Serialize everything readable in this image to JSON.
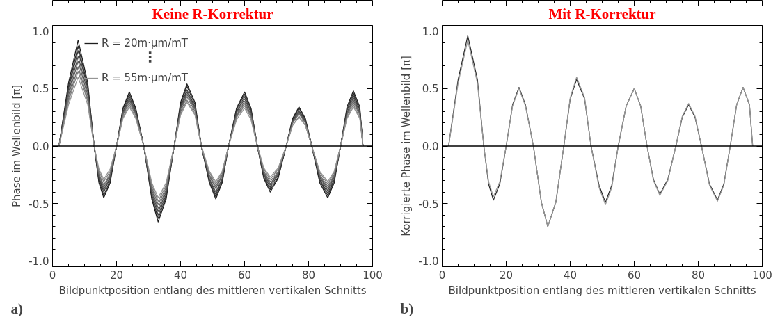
{
  "chart_data": [
    {
      "type": "line",
      "title": "Keine R-Korrektur",
      "xlabel": "Bildpunktposition entlang des mittleren vertikalen Schnitts",
      "ylabel": "Phase im Wellenbild [π]",
      "x": [
        2,
        5,
        8,
        11,
        13,
        14.5,
        16,
        18,
        20,
        22,
        24,
        26,
        28.5,
        31,
        33,
        35.5,
        38,
        40,
        42,
        44.5,
        46.5,
        49,
        51,
        53,
        55,
        57.5,
        60,
        62,
        64,
        66,
        68,
        70.5,
        73,
        75,
        77,
        79,
        81,
        83.5,
        86,
        88,
        90,
        92,
        94,
        96,
        97
      ],
      "xlim": [
        0,
        100
      ],
      "ylim": [
        -1.05,
        1.05
      ],
      "xticks": [
        0,
        20,
        40,
        60,
        80,
        100
      ],
      "yticks": [
        {
          "value": -1,
          "label": "-1.0"
        },
        {
          "value": -0.5,
          "label": "-0.5"
        },
        {
          "value": 0,
          "label": "0.0"
        },
        {
          "value": 0.5,
          "label": "0.5"
        },
        {
          "value": 1,
          "label": "1.0"
        }
      ],
      "grid": false,
      "legend": "top left",
      "line_style": "solid",
      "ref_lines": [
        {
          "axis": "y",
          "value": 0,
          "color": "#000000"
        }
      ],
      "annotations": [
        "⋮",
        "a)"
      ],
      "series": [
        {
          "name": "R = 20m·µm/mT",
          "color": "#1e1e1e",
          "values": [
            0,
            0.55,
            0.92,
            0.55,
            0,
            -0.32,
            -0.45,
            -0.32,
            0,
            0.33,
            0.47,
            0.33,
            0,
            -0.46,
            -0.66,
            -0.46,
            0,
            0.38,
            0.54,
            0.38,
            0,
            -0.32,
            -0.46,
            -0.32,
            0,
            0.33,
            0.47,
            0.33,
            0,
            -0.28,
            -0.4,
            -0.28,
            0,
            0.24,
            0.34,
            0.24,
            0,
            -0.32,
            -0.45,
            -0.32,
            0,
            0.34,
            0.48,
            0.34,
            0
          ]
        },
        {
          "color": "#2e2e2e",
          "values": [
            0,
            0.52,
            0.87,
            0.52,
            0,
            -0.3,
            -0.43,
            -0.3,
            0,
            0.32,
            0.45,
            0.32,
            0,
            -0.44,
            -0.63,
            -0.44,
            0,
            0.36,
            0.52,
            0.36,
            0,
            -0.31,
            -0.44,
            -0.31,
            0,
            0.32,
            0.45,
            0.32,
            0,
            -0.27,
            -0.38,
            -0.27,
            0,
            0.23,
            0.33,
            0.23,
            0,
            -0.3,
            -0.43,
            -0.3,
            0,
            0.32,
            0.46,
            0.32,
            0
          ]
        },
        {
          "color": "#3e3e3e",
          "values": [
            0,
            0.5,
            0.83,
            0.5,
            0,
            -0.28,
            -0.4,
            -0.28,
            0,
            0.3,
            0.43,
            0.3,
            0,
            -0.42,
            -0.6,
            -0.42,
            0,
            0.34,
            0.49,
            0.34,
            0,
            -0.29,
            -0.42,
            -0.29,
            0,
            0.3,
            0.43,
            0.3,
            0,
            -0.25,
            -0.36,
            -0.25,
            0,
            0.22,
            0.31,
            0.22,
            0,
            -0.29,
            -0.41,
            -0.29,
            0,
            0.31,
            0.44,
            0.31,
            0
          ]
        },
        {
          "color": "#4e4e4e",
          "values": [
            0,
            0.47,
            0.78,
            0.47,
            0,
            -0.27,
            -0.38,
            -0.27,
            0,
            0.29,
            0.41,
            0.29,
            0,
            -0.4,
            -0.57,
            -0.4,
            0,
            0.33,
            0.47,
            0.33,
            0,
            -0.28,
            -0.4,
            -0.28,
            0,
            0.29,
            0.41,
            0.29,
            0,
            -0.24,
            -0.34,
            -0.24,
            0,
            0.21,
            0.3,
            0.21,
            0,
            -0.27,
            -0.39,
            -0.27,
            0,
            0.29,
            0.42,
            0.29,
            0
          ]
        },
        {
          "color": "#5e5e5e",
          "values": [
            0,
            0.44,
            0.74,
            0.44,
            0,
            -0.25,
            -0.36,
            -0.25,
            0,
            0.28,
            0.4,
            0.28,
            0,
            -0.38,
            -0.54,
            -0.38,
            0,
            0.32,
            0.45,
            0.32,
            0,
            -0.26,
            -0.37,
            -0.26,
            0,
            0.27,
            0.39,
            0.27,
            0,
            -0.23,
            -0.33,
            -0.23,
            0,
            0.2,
            0.29,
            0.2,
            0,
            -0.26,
            -0.37,
            -0.26,
            0,
            0.28,
            0.4,
            0.28,
            0
          ]
        },
        {
          "color": "#6e6e6e",
          "values": [
            0,
            0.41,
            0.69,
            0.41,
            0,
            -0.24,
            -0.34,
            -0.24,
            0,
            0.27,
            0.38,
            0.27,
            0,
            -0.36,
            -0.51,
            -0.36,
            0,
            0.3,
            0.43,
            0.3,
            0,
            -0.25,
            -0.35,
            -0.25,
            0,
            0.26,
            0.37,
            0.26,
            0,
            -0.22,
            -0.31,
            -0.22,
            0,
            0.2,
            0.28,
            0.2,
            0,
            -0.25,
            -0.35,
            -0.25,
            0,
            0.27,
            0.38,
            0.27,
            0
          ]
        },
        {
          "color": "#7e7e7e",
          "values": [
            0,
            0.39,
            0.65,
            0.39,
            0,
            -0.22,
            -0.31,
            -0.22,
            0,
            0.25,
            0.36,
            0.25,
            0,
            -0.34,
            -0.48,
            -0.34,
            0,
            0.28,
            0.4,
            0.28,
            0,
            -0.23,
            -0.33,
            -0.23,
            0,
            0.25,
            0.35,
            0.25,
            0,
            -0.2,
            -0.29,
            -0.2,
            0,
            0.18,
            0.26,
            0.18,
            0,
            -0.23,
            -0.33,
            -0.23,
            0,
            0.25,
            0.36,
            0.25,
            0
          ]
        },
        {
          "name": "R = 55m·µm/mT",
          "color": "#959595",
          "values": [
            0,
            0.36,
            0.6,
            0.36,
            0,
            -0.2,
            -0.29,
            -0.2,
            0,
            0.24,
            0.34,
            0.24,
            0,
            -0.32,
            -0.45,
            -0.32,
            0,
            0.27,
            0.38,
            0.27,
            0,
            -0.22,
            -0.31,
            -0.22,
            0,
            0.23,
            0.33,
            0.23,
            0,
            -0.19,
            -0.27,
            -0.19,
            0,
            0.18,
            0.25,
            0.18,
            0,
            -0.22,
            -0.31,
            -0.22,
            0,
            0.24,
            0.34,
            0.24,
            0
          ]
        }
      ]
    },
    {
      "type": "line",
      "title": "Mit R-Korrektur",
      "xlabel": "Bildpunktposition entlang des mittleren vertikalen Schnitts",
      "ylabel": "Korrigierte Phase im Wellenbild [π]",
      "x": [
        2,
        5,
        8,
        11,
        13,
        14.5,
        16,
        18,
        20,
        22,
        24,
        26,
        28.5,
        31,
        33,
        35.5,
        38,
        40,
        42,
        44.5,
        46.5,
        49,
        51,
        53,
        55,
        57.5,
        60,
        62,
        64,
        66,
        68,
        70.5,
        73,
        75,
        77,
        79,
        81,
        83.5,
        86,
        88,
        90,
        92,
        94,
        96,
        97
      ],
      "xlim": [
        0,
        100
      ],
      "ylim": [
        -1.05,
        1.05
      ],
      "xticks": [
        0,
        20,
        40,
        60,
        80,
        100
      ],
      "yticks": [
        {
          "value": -1,
          "label": "-1.0"
        },
        {
          "value": -0.5,
          "label": "-0.5"
        },
        {
          "value": 0,
          "label": "0.0"
        },
        {
          "value": 0.5,
          "label": "0.5"
        },
        {
          "value": 1,
          "label": "1.0"
        }
      ],
      "grid": false,
      "line_style": "solid",
      "ref_lines": [
        {
          "axis": "y",
          "value": 0,
          "color": "#000000"
        }
      ],
      "annotations": [
        "b)"
      ],
      "series": [
        {
          "color": "#2a2a2a",
          "values": [
            0,
            0.58,
            0.96,
            0.58,
            0,
            -0.33,
            -0.47,
            -0.33,
            0,
            0.36,
            0.51,
            0.36,
            0,
            -0.49,
            -0.7,
            -0.49,
            0,
            0.41,
            0.58,
            0.41,
            0,
            -0.34,
            -0.49,
            -0.34,
            0,
            0.35,
            0.5,
            0.35,
            0,
            -0.29,
            -0.42,
            -0.29,
            0,
            0.25,
            0.36,
            0.25,
            0,
            -0.33,
            -0.47,
            -0.33,
            0,
            0.36,
            0.51,
            0.36,
            0
          ]
        },
        {
          "color": "#999999",
          "values": [
            0,
            0.55,
            0.92,
            0.55,
            0,
            -0.31,
            -0.44,
            -0.31,
            0,
            0.35,
            0.5,
            0.35,
            0,
            -0.49,
            -0.7,
            -0.49,
            0,
            0.42,
            0.6,
            0.42,
            0,
            -0.36,
            -0.51,
            -0.36,
            0,
            0.35,
            0.5,
            0.35,
            0,
            -0.3,
            -0.43,
            -0.3,
            0,
            0.26,
            0.37,
            0.26,
            0,
            -0.34,
            -0.48,
            -0.34,
            0,
            0.36,
            0.51,
            0.36,
            0
          ]
        }
      ]
    }
  ]
}
